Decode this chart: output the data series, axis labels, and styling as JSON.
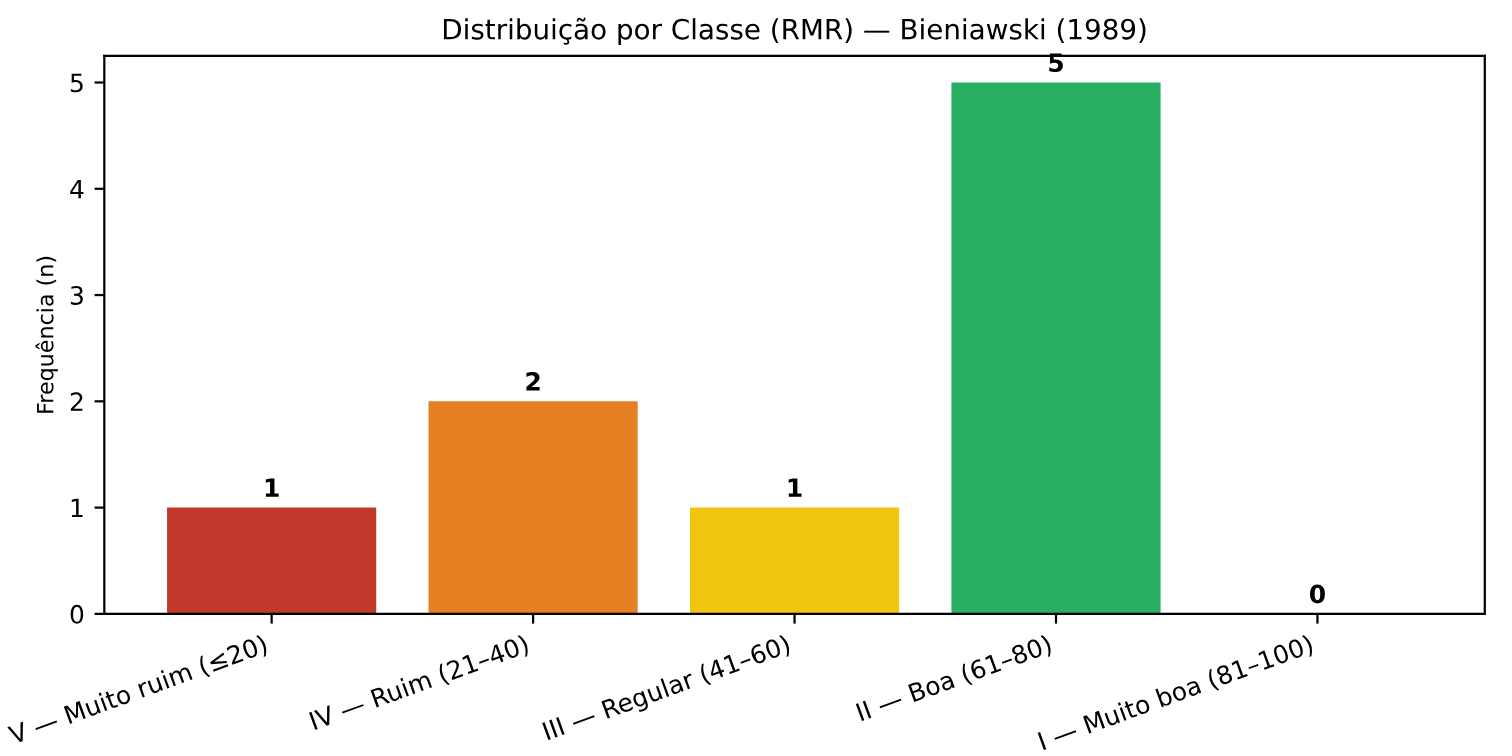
{
  "chart_data": {
    "type": "bar",
    "title": "Distribuição por Classe (RMR) — Bieniawski (1989)",
    "ylabel": "Frequência (n)",
    "categories": [
      "V — Muito ruim (≤20)",
      "IV — Ruim (21–40)",
      "III — Regular (41–60)",
      "II — Boa (61–80)",
      "I — Muito boa (81–100)"
    ],
    "values": [
      1,
      2,
      1,
      5,
      0
    ],
    "colors": [
      "#c0392b",
      "#e67e22",
      "#f1c40f",
      "#27ae60",
      "#2980b9"
    ],
    "ylim": [
      0,
      5.25
    ],
    "yticks": [
      0,
      1,
      2,
      3,
      4,
      5
    ],
    "grid": false,
    "data_labels": true
  }
}
